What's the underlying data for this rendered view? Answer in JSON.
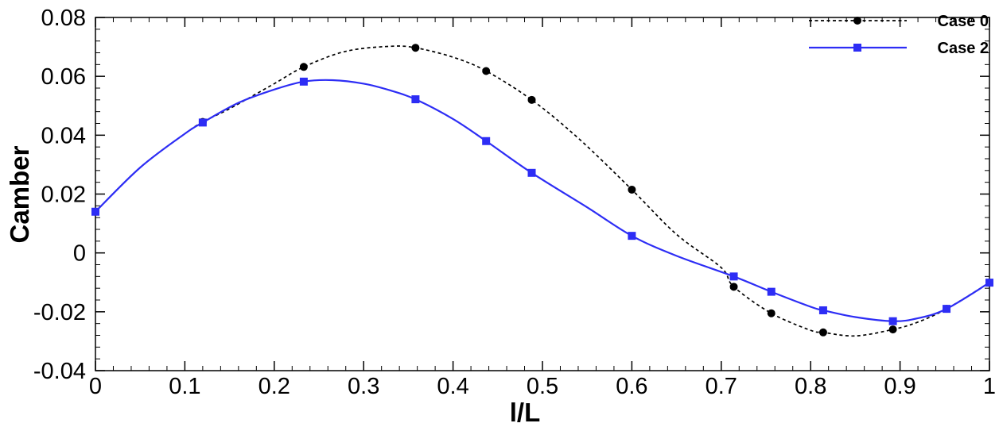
{
  "chart_data": {
    "type": "line",
    "title": "",
    "xlabel": "l/L",
    "ylabel": "Camber",
    "xlim": [
      0,
      1
    ],
    "ylim": [
      -0.04,
      0.08
    ],
    "xticks": [
      0,
      0.1,
      0.2,
      0.3,
      0.4,
      0.5,
      0.6,
      0.7,
      0.8,
      0.9,
      1
    ],
    "xtick_labels": [
      "0",
      "0.1",
      "0.2",
      "0.3",
      "0.4",
      "0.5",
      "0.6",
      "0.7",
      "0.8",
      "0.9",
      "1"
    ],
    "yticks": [
      -0.04,
      -0.02,
      0,
      0.02,
      0.04,
      0.06,
      0.08
    ],
    "ytick_labels": [
      "-0.04",
      "-0.02",
      "0",
      "0.02",
      "0.04",
      "0.06",
      "0.08"
    ],
    "grid": false,
    "legend_position": "top-right",
    "series": [
      {
        "name": "Case 0",
        "color": "#000000",
        "line_style": "dashed",
        "marker": "circle",
        "curve_x": [
          0,
          0.05,
          0.1,
          0.12,
          0.15,
          0.2,
          0.233,
          0.28,
          0.33,
          0.358,
          0.4,
          0.437,
          0.488,
          0.54,
          0.6,
          0.65,
          0.7,
          0.714,
          0.756,
          0.8,
          0.814,
          0.85,
          0.892,
          0.92,
          0.952,
          1
        ],
        "curve_y": [
          0.014,
          0.029,
          0.0405,
          0.0445,
          0.049,
          0.0575,
          0.0632,
          0.0685,
          0.0702,
          0.0697,
          0.0665,
          0.0618,
          0.052,
          0.039,
          0.0215,
          0.0063,
          -0.005,
          -0.0115,
          -0.0205,
          -0.0263,
          -0.027,
          -0.0282,
          -0.026,
          -0.0235,
          -0.019,
          -0.0101
        ],
        "marker_x": [
          0,
          0.12,
          0.233,
          0.358,
          0.437,
          0.488,
          0.6,
          0.714,
          0.756,
          0.814,
          0.892,
          0.952,
          1
        ],
        "marker_y": [
          0.014,
          0.0445,
          0.0632,
          0.0697,
          0.0618,
          0.052,
          0.0215,
          -0.0115,
          -0.0205,
          -0.027,
          -0.026,
          -0.019,
          -0.0101
        ]
      },
      {
        "name": "Case 2",
        "color": "#2d2df5",
        "line_style": "solid",
        "marker": "square",
        "curve_x": [
          0,
          0.05,
          0.1,
          0.12,
          0.16,
          0.2,
          0.233,
          0.265,
          0.3,
          0.33,
          0.358,
          0.4,
          0.437,
          0.488,
          0.55,
          0.6,
          0.65,
          0.714,
          0.756,
          0.8,
          0.814,
          0.85,
          0.892,
          0.92,
          0.952,
          1
        ],
        "curve_y": [
          0.014,
          0.029,
          0.0405,
          0.0443,
          0.051,
          0.0555,
          0.0582,
          0.0587,
          0.0575,
          0.0552,
          0.0522,
          0.0455,
          0.038,
          0.0272,
          0.0155,
          0.0058,
          -0.001,
          -0.008,
          -0.0132,
          -0.0183,
          -0.0195,
          -0.0218,
          -0.0232,
          -0.0222,
          -0.019,
          -0.0101
        ],
        "marker_x": [
          0,
          0.12,
          0.233,
          0.358,
          0.437,
          0.488,
          0.6,
          0.714,
          0.756,
          0.814,
          0.892,
          0.952,
          1
        ],
        "marker_y": [
          0.014,
          0.0443,
          0.0582,
          0.0522,
          0.038,
          0.0272,
          0.0058,
          -0.008,
          -0.0132,
          -0.0195,
          -0.0232,
          -0.019,
          -0.0101
        ]
      }
    ]
  }
}
